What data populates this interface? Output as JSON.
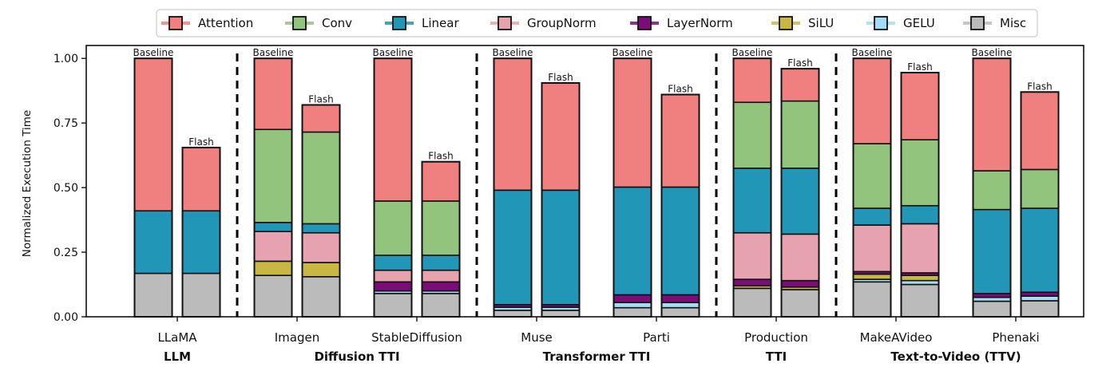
{
  "chart_data": {
    "type": "bar",
    "stacked": true,
    "ylabel": "Normalized Execution Time",
    "ylim": [
      0,
      1.05
    ],
    "yticks": [
      0.0,
      0.25,
      0.5,
      0.75,
      1.0
    ],
    "ytick_labels": [
      "0.00",
      "0.25",
      "0.50",
      "0.75",
      "1.00"
    ],
    "legend": {
      "placement": "top-center",
      "entries": [
        {
          "name": "Attention",
          "color": "#f08080"
        },
        {
          "name": "Conv",
          "color": "#93c47d"
        },
        {
          "name": "Linear",
          "color": "#2196b6"
        },
        {
          "name": "GroupNorm",
          "color": "#e6a2ae"
        },
        {
          "name": "LayerNorm",
          "color": "#7b0c7a"
        },
        {
          "name": "SiLU",
          "color": "#c9b744"
        },
        {
          "name": "GELU",
          "color": "#a3dcf5"
        },
        {
          "name": "Misc",
          "color": "#bbbbbb"
        }
      ]
    },
    "stack_order": [
      "Misc",
      "GELU",
      "SiLU",
      "LayerNorm",
      "GroupNorm",
      "Linear",
      "Conv",
      "Attention"
    ],
    "models": [
      {
        "name": "LLaMA",
        "group": "LLM",
        "bars": [
          {
            "tag": "Baseline",
            "total": 1.0,
            "segments": {
              "Misc": 0.168,
              "GELU": 0,
              "SiLU": 0,
              "LayerNorm": 0,
              "GroupNorm": 0,
              "Linear": 0.242,
              "Conv": 0,
              "Attention": 0.59
            }
          },
          {
            "tag": "Flash",
            "total": 0.655,
            "segments": {
              "Misc": 0.168,
              "GELU": 0,
              "SiLU": 0,
              "LayerNorm": 0,
              "GroupNorm": 0,
              "Linear": 0.242,
              "Conv": 0,
              "Attention": 0.245
            }
          }
        ]
      },
      {
        "name": "Imagen",
        "group": "Diffusion TTI",
        "bars": [
          {
            "tag": "Baseline",
            "total": 1.0,
            "segments": {
              "Misc": 0.16,
              "GELU": 0,
              "SiLU": 0.055,
              "LayerNorm": 0,
              "GroupNorm": 0.115,
              "Linear": 0.035,
              "Conv": 0.36,
              "Attention": 0.275
            }
          },
          {
            "tag": "Flash",
            "total": 0.82,
            "segments": {
              "Misc": 0.155,
              "GELU": 0,
              "SiLU": 0.055,
              "LayerNorm": 0,
              "GroupNorm": 0.115,
              "Linear": 0.035,
              "Conv": 0.355,
              "Attention": 0.105
            }
          }
        ]
      },
      {
        "name": "StableDiffusion",
        "group": "Diffusion TTI",
        "bars": [
          {
            "tag": "Baseline",
            "total": 1.0,
            "segments": {
              "Misc": 0.09,
              "GELU": 0.01,
              "SiLU": 0,
              "LayerNorm": 0.035,
              "GroupNorm": 0.045,
              "Linear": 0.058,
              "Conv": 0.21,
              "Attention": 0.552
            }
          },
          {
            "tag": "Flash",
            "total": 0.6,
            "segments": {
              "Misc": 0.09,
              "GELU": 0.01,
              "SiLU": 0,
              "LayerNorm": 0.035,
              "GroupNorm": 0.045,
              "Linear": 0.058,
              "Conv": 0.21,
              "Attention": 0.152
            }
          }
        ]
      },
      {
        "name": "Muse",
        "group": "Transformer TTI",
        "bars": [
          {
            "tag": "Baseline",
            "total": 1.0,
            "segments": {
              "Misc": 0.025,
              "GELU": 0.012,
              "SiLU": 0,
              "LayerNorm": 0.01,
              "GroupNorm": 0,
              "Linear": 0.443,
              "Conv": 0,
              "Attention": 0.51
            }
          },
          {
            "tag": "Flash",
            "total": 0.905,
            "segments": {
              "Misc": 0.025,
              "GELU": 0.012,
              "SiLU": 0,
              "LayerNorm": 0.01,
              "GroupNorm": 0,
              "Linear": 0.443,
              "Conv": 0,
              "Attention": 0.415
            }
          }
        ]
      },
      {
        "name": "Parti",
        "group": "Transformer TTI",
        "bars": [
          {
            "tag": "Baseline",
            "total": 1.0,
            "segments": {
              "Misc": 0.035,
              "GELU": 0.02,
              "SiLU": 0,
              "LayerNorm": 0.03,
              "GroupNorm": 0,
              "Linear": 0.417,
              "Conv": 0,
              "Attention": 0.498
            }
          },
          {
            "tag": "Flash",
            "total": 0.86,
            "segments": {
              "Misc": 0.035,
              "GELU": 0.02,
              "SiLU": 0,
              "LayerNorm": 0.03,
              "GroupNorm": 0,
              "Linear": 0.417,
              "Conv": 0,
              "Attention": 0.358
            }
          }
        ]
      },
      {
        "name": "Production",
        "group": "TTI",
        "bars": [
          {
            "tag": "Baseline",
            "total": 1.0,
            "segments": {
              "Misc": 0.11,
              "GELU": 0,
              "SiLU": 0.01,
              "LayerNorm": 0.025,
              "GroupNorm": 0.18,
              "Linear": 0.25,
              "Conv": 0.255,
              "Attention": 0.17
            }
          },
          {
            "tag": "Flash",
            "total": 0.96,
            "segments": {
              "Misc": 0.105,
              "GELU": 0,
              "SiLU": 0.01,
              "LayerNorm": 0.025,
              "GroupNorm": 0.18,
              "Linear": 0.255,
              "Conv": 0.26,
              "Attention": 0.125
            }
          }
        ]
      },
      {
        "name": "MakeAVideo",
        "group": "Text-to-Video (TTV)",
        "bars": [
          {
            "tag": "Baseline",
            "total": 1.0,
            "segments": {
              "Misc": 0.135,
              "GELU": 0.01,
              "SiLU": 0.02,
              "LayerNorm": 0.01,
              "GroupNorm": 0.18,
              "Linear": 0.065,
              "Conv": 0.25,
              "Attention": 0.33
            }
          },
          {
            "tag": "Flash",
            "total": 0.945,
            "segments": {
              "Misc": 0.125,
              "GELU": 0.015,
              "SiLU": 0.02,
              "LayerNorm": 0.01,
              "GroupNorm": 0.19,
              "Linear": 0.07,
              "Conv": 0.255,
              "Attention": 0.26
            }
          }
        ]
      },
      {
        "name": "Phenaki",
        "group": "Text-to-Video (TTV)",
        "bars": [
          {
            "tag": "Baseline",
            "total": 1.0,
            "segments": {
              "Misc": 0.06,
              "GELU": 0.015,
              "SiLU": 0,
              "LayerNorm": 0.015,
              "GroupNorm": 0,
              "Linear": 0.325,
              "Conv": 0.15,
              "Attention": 0.435
            }
          },
          {
            "tag": "Flash",
            "total": 0.87,
            "segments": {
              "Misc": 0.062,
              "GELU": 0.018,
              "SiLU": 0,
              "LayerNorm": 0.015,
              "GroupNorm": 0,
              "Linear": 0.325,
              "Conv": 0.15,
              "Attention": 0.3
            }
          }
        ]
      }
    ],
    "groups": [
      "LLM",
      "Diffusion TTI",
      "Transformer TTI",
      "TTI",
      "Text-to-Video (TTV)"
    ],
    "separators_after": [
      "LLaMA",
      "StableDiffusion",
      "Parti",
      "Production"
    ]
  }
}
